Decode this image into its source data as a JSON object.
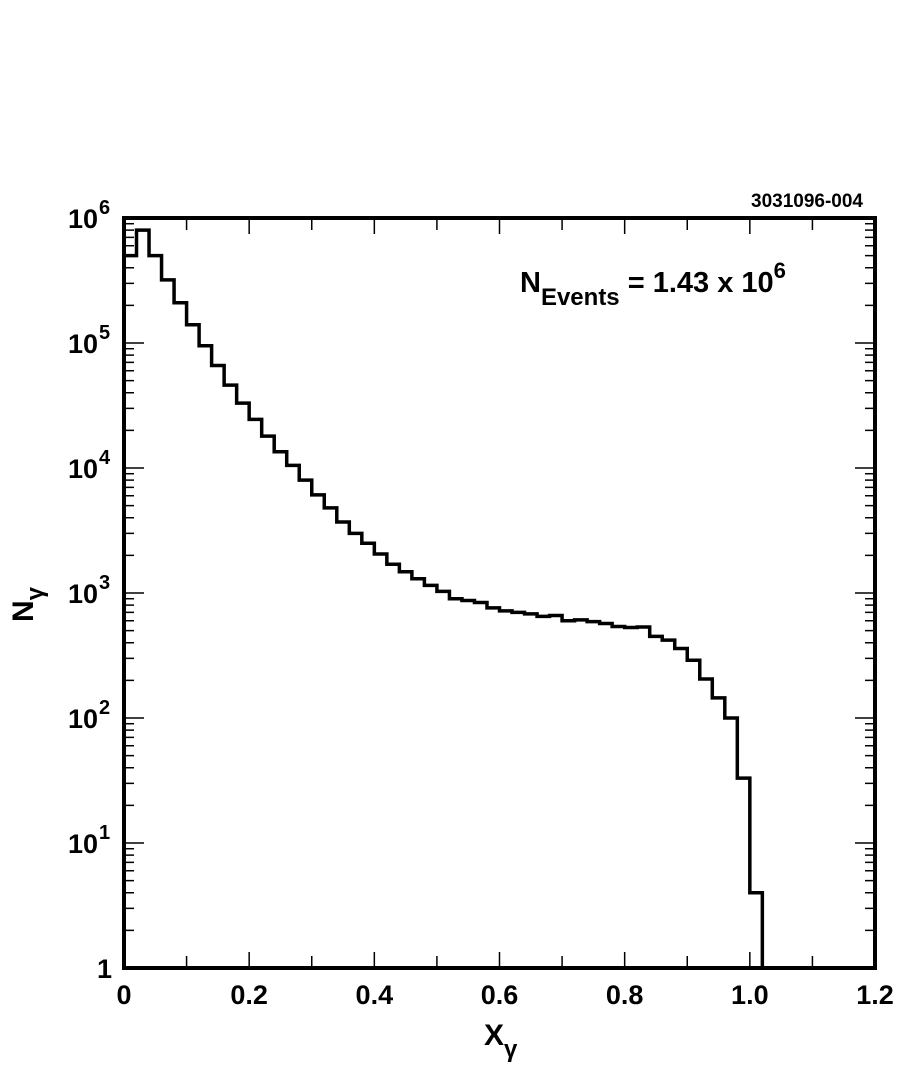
{
  "figure_id": "3031096-004",
  "chart_data": {
    "type": "histogram",
    "title": "",
    "xlabel_base": "X",
    "xlabel_sub": "γ",
    "ylabel_base": "N",
    "ylabel_sub": "γ",
    "xlim": [
      0,
      1.2
    ],
    "ylim": [
      1,
      1000000
    ],
    "yscale": "log",
    "grid": false,
    "x_ticks": [
      "0",
      "0.2",
      "0.4",
      "0.6",
      "0.8",
      "1.0",
      "1.2"
    ],
    "y_ticks": [
      {
        "base": "1",
        "exp": ""
      },
      {
        "base": "10",
        "exp": "1"
      },
      {
        "base": "10",
        "exp": "2"
      },
      {
        "base": "10",
        "exp": "3"
      },
      {
        "base": "10",
        "exp": "4"
      },
      {
        "base": "10",
        "exp": "5"
      },
      {
        "base": "10",
        "exp": "6"
      }
    ],
    "annotation": {
      "base": "N",
      "sub": "Events",
      "text": " = 1.43 x 10",
      "exp": "6",
      "position": "top-right"
    },
    "bin_width": 0.02,
    "bin_start": 0,
    "values": [
      500000,
      800000,
      500000,
      320000,
      210000,
      140000,
      95000,
      66000,
      46000,
      33000,
      24500,
      18000,
      13500,
      10500,
      8000,
      6100,
      4800,
      3700,
      3000,
      2500,
      2050,
      1700,
      1480,
      1300,
      1150,
      1030,
      900,
      870,
      840,
      760,
      720,
      700,
      680,
      650,
      660,
      600,
      610,
      590,
      570,
      540,
      530,
      535,
      450,
      420,
      360,
      290,
      205,
      145,
      100,
      33,
      4
    ]
  }
}
